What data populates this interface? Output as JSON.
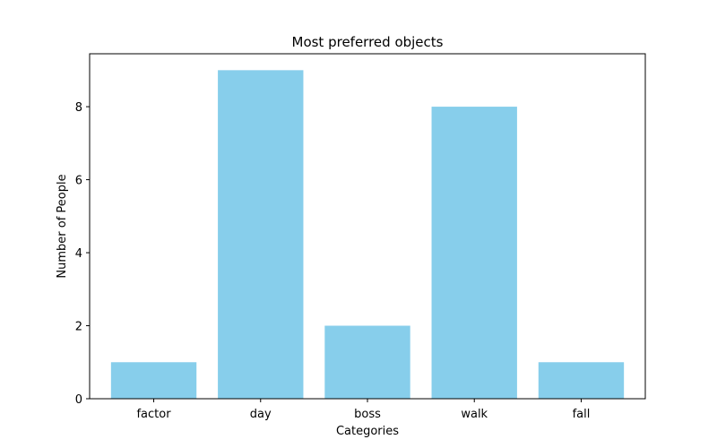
{
  "chart_data": {
    "type": "bar",
    "title": "Most preferred objects",
    "xlabel": "Categories",
    "ylabel": "Number of People",
    "categories": [
      "factor",
      "day",
      "boss",
      "walk",
      "fall"
    ],
    "values": [
      1,
      9,
      2,
      8,
      1
    ],
    "ylim": [
      0,
      9.45
    ],
    "yticks": [
      0,
      2,
      4,
      6,
      8
    ],
    "bar_color": "#87CEEB",
    "grid": false,
    "legend": "none"
  }
}
